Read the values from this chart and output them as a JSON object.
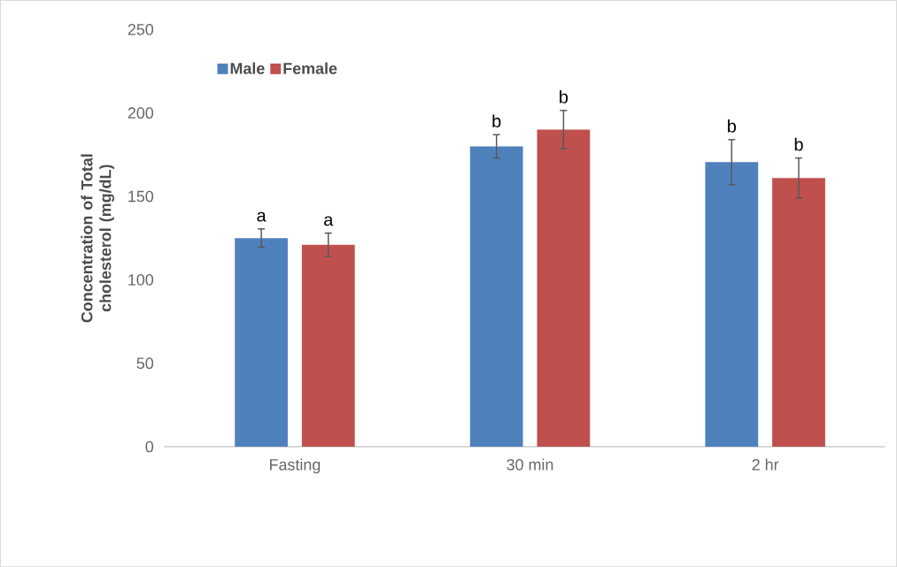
{
  "chart_data": {
    "type": "bar",
    "ylabel": "Concentration of Total cholesterol (mg/dL)",
    "categories": [
      "Fasting",
      "30 min",
      "2 hr"
    ],
    "series": [
      {
        "name": "Male",
        "color": "#4f81bd",
        "values": [
          125,
          180,
          170.5
        ],
        "errors": [
          5.5,
          7,
          13.5
        ]
      },
      {
        "name": "Female",
        "color": "#c0504d",
        "values": [
          121,
          190,
          161
        ],
        "errors": [
          7,
          11.5,
          12
        ]
      }
    ],
    "ylim": [
      0,
      250
    ],
    "yticks": [
      0,
      50,
      100,
      150,
      200,
      250
    ],
    "legend": "top left",
    "annotations": [
      "a",
      "a",
      "b",
      "b",
      "b",
      "b"
    ]
  }
}
